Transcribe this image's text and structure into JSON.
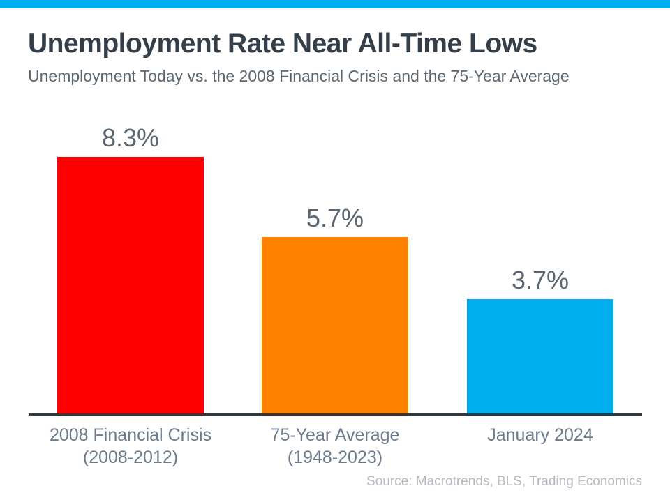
{
  "page": {
    "title": "Unemployment Rate Near All-Time Lows",
    "subtitle": "Unemployment Today vs. the 2008 Financial Crisis and the 75-Year Average",
    "source": "Source: Macrotrends, BLS, Trading Economics"
  },
  "colors": {
    "accent_strip": "#00AEEF",
    "title_text": "#333E48",
    "subtitle_text": "#5C6770",
    "value_label_text": "#5A6672",
    "category_label_text": "#6B7B8D",
    "axis_line": "#2E3742",
    "source_text": "#B3BAC1"
  },
  "chart_data": {
    "type": "bar",
    "title": "Unemployment Rate Near All-Time Lows",
    "subtitle": "Unemployment Today vs. the 2008 Financial Crisis and the 75-Year Average",
    "categories": [
      "2008 Financial Crisis (2008-2012)",
      "75-Year Average (1948-2023)",
      "January 2024"
    ],
    "category_lines": [
      [
        "2008 Financial Crisis",
        "(2008-2012)"
      ],
      [
        "75-Year Average",
        "(1948-2023)"
      ],
      [
        "January 2024"
      ]
    ],
    "values": [
      8.3,
      5.7,
      3.7
    ],
    "value_labels": [
      "8.3%",
      "5.7%",
      "3.7%"
    ],
    "unit": "%",
    "bar_colors": [
      "#FF0000",
      "#FF8300",
      "#00AEEF"
    ],
    "ylim": [
      0,
      9.2
    ],
    "grid": false,
    "legend": null,
    "data_labels_position": "above-bars",
    "source": "Source: Macrotrends, BLS, Trading Economics"
  }
}
